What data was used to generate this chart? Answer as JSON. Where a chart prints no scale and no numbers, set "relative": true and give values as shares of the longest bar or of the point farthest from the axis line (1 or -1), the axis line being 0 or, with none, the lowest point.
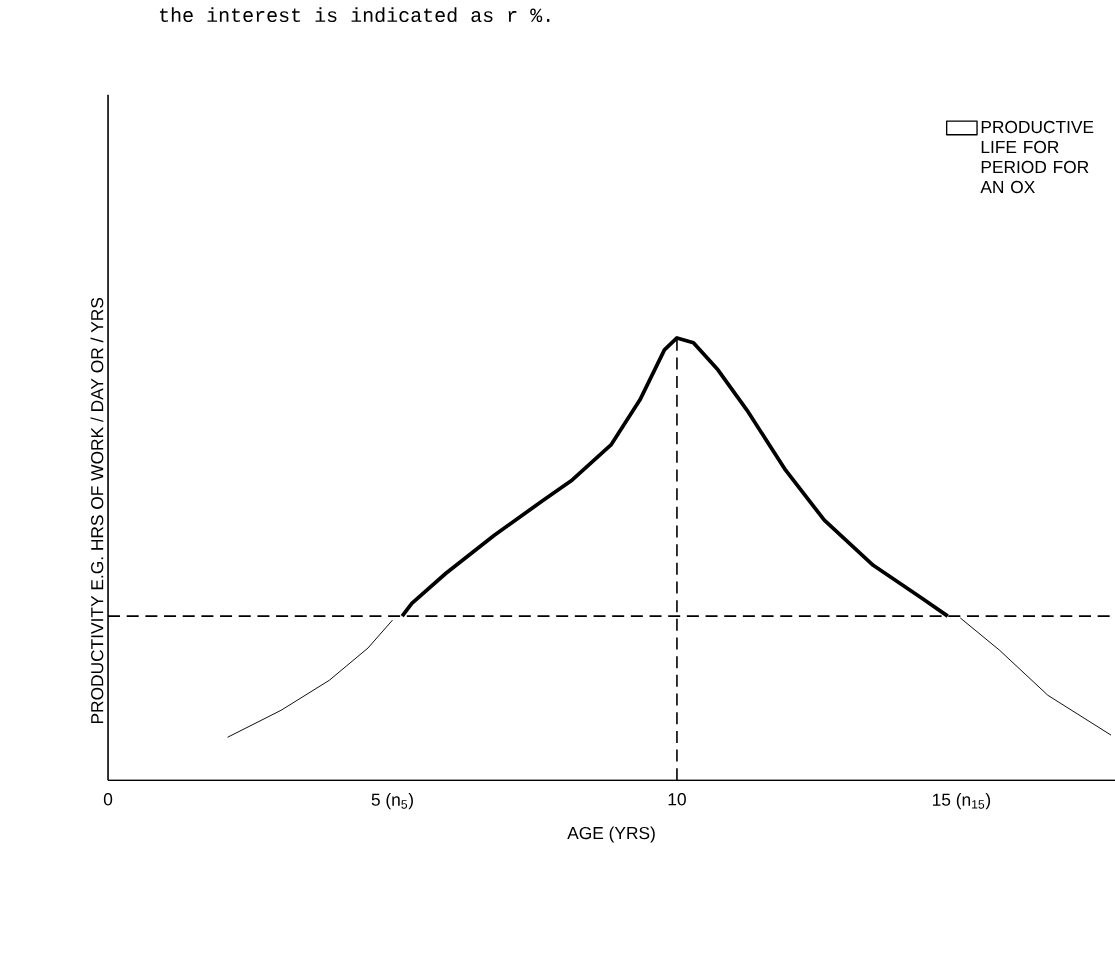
{
  "chart_data": {
    "type": "line",
    "relative": true,
    "xlabel": "AGE (YRS)",
    "ylabel": "PRODUCTIVITY E.G. HRS OF WORK / DAY OR / YRS",
    "annotations": [
      "the interest is indicated as r %."
    ],
    "xlim": [
      0,
      17.7
    ],
    "xticks": [
      0,
      {
        "value": 5,
        "label": "5 (n$_{5}$)"
      },
      10,
      {
        "value": 15,
        "label": "15 (n$_{15}$)"
      }
    ],
    "legend": "top right",
    "ref_lines": [
      {
        "axis": "y",
        "value": 0.371,
        "line_style": "dashed"
      },
      {
        "axis": "x",
        "value": 10,
        "line_style": "dashed"
      }
    ],
    "series": [
      {
        "name": "PRODUCTIVE LIFE FOR PERIOD FOR AN OX",
        "color": "#000000",
        "x": [
          5.17,
          5.34,
          5.94,
          6.79,
          7.65,
          8.16,
          8.84,
          9.35,
          9.78,
          10.0,
          10.29,
          10.72,
          11.23,
          11.91,
          12.59,
          13.45,
          14.3,
          14.76
        ],
        "values": [
          0.371,
          0.4,
          0.468,
          0.554,
          0.633,
          0.679,
          0.758,
          0.86,
          0.973,
          1.0,
          0.989,
          0.928,
          0.837,
          0.701,
          0.588,
          0.486,
          0.412,
          0.371
        ]
      },
      {
        "color": "#000000",
        "x": [
          2.1,
          3.04,
          3.89,
          4.57,
          5.0
        ],
        "values": [
          0.097,
          0.158,
          0.226,
          0.299,
          0.362
        ]
      },
      {
        "color": "#000000",
        "x": [
          14.98,
          15.67,
          16.52,
          17.63
        ],
        "values": [
          0.367,
          0.294,
          0.192,
          0.102
        ]
      }
    ]
  }
}
